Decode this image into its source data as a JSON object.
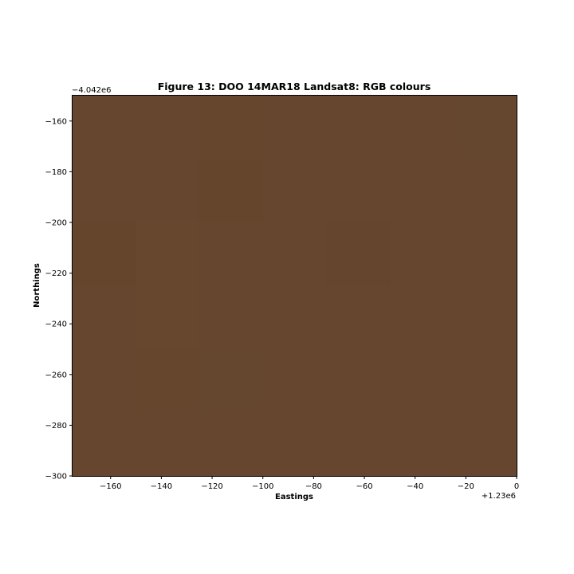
{
  "chart_data": {
    "type": "heatmap",
    "title": "Figure 13: DOO 14MAR18  Landsat8: RGB colours",
    "xlabel": "Eastings",
    "ylabel": "Northings",
    "x_offset_label": "+1.23e6",
    "y_offset_label": "−4.042e6",
    "xlim": [
      -175,
      0
    ],
    "ylim": [
      -300,
      -150
    ],
    "x_ticks": [
      -160,
      -140,
      -120,
      -100,
      -80,
      -60,
      -40,
      -20,
      0
    ],
    "x_tick_labels": [
      "−160",
      "−140",
      "−120",
      "−100",
      "−80",
      "−60",
      "−40",
      "−20",
      "0"
    ],
    "y_ticks": [
      -160,
      -180,
      -200,
      -220,
      -240,
      -260,
      -280,
      -300
    ],
    "y_tick_labels": [
      "−160",
      "−180",
      "−200",
      "−220",
      "−240",
      "−260",
      "−280",
      "−300"
    ],
    "grid": false,
    "image_fill_color": "#66462e",
    "pixel_size": 25,
    "rows_top_to_bottom": [
      [
        "#66462e",
        "#66462e",
        "#66462d",
        "#66462e",
        "#66462e",
        "#66462e",
        "#65462e"
      ],
      [
        "#66462e",
        "#66462e",
        "#65462d",
        "#66462e",
        "#66462e",
        "#66462e",
        "#66462e"
      ],
      [
        "#65462d",
        "#67472e",
        "#66462e",
        "#66462e",
        "#65452e",
        "#66462e",
        "#66462e"
      ],
      [
        "#66462e",
        "#67472e",
        "#66462e",
        "#66462e",
        "#66462e",
        "#66462e",
        "#66462e"
      ],
      [
        "#66462e",
        "#66462d",
        "#65462e",
        "#66462e",
        "#66462e",
        "#66462e",
        "#66462e"
      ],
      [
        "#66462e",
        "#66462e",
        "#66462e",
        "#66462e",
        "#66462e",
        "#66462e",
        "#66462e"
      ]
    ]
  }
}
